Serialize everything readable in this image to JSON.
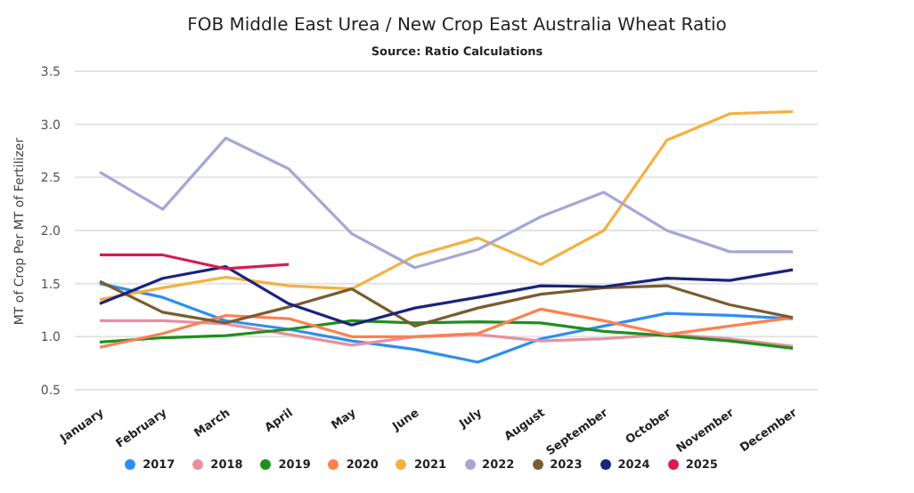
{
  "chart_data": {
    "type": "line",
    "title": "FOB Middle East Urea / New Crop East Australia Wheat Ratio",
    "subtitle": "Source: Ratio Calculations",
    "ylabel": "MT of Crop Per MT of Fertilizer",
    "categories": [
      "January",
      "February",
      "March",
      "April",
      "May",
      "June",
      "July",
      "August",
      "September",
      "October",
      "November",
      "December"
    ],
    "series": [
      {
        "name": "2017",
        "color": "#2e8ef0",
        "values": [
          1.5,
          1.37,
          1.15,
          1.07,
          0.96,
          0.88,
          0.76,
          0.98,
          1.1,
          1.22,
          1.2,
          1.17
        ]
      },
      {
        "name": "2018",
        "color": "#e8909f",
        "values": [
          1.15,
          1.15,
          1.12,
          1.02,
          0.92,
          1.0,
          1.02,
          0.96,
          0.98,
          1.02,
          0.98,
          0.91
        ]
      },
      {
        "name": "2019",
        "color": "#1f8f1f",
        "values": [
          0.95,
          0.99,
          1.01,
          1.07,
          1.15,
          1.13,
          1.14,
          1.13,
          1.05,
          1.01,
          0.96,
          0.89
        ]
      },
      {
        "name": "2020",
        "color": "#ff7f50",
        "values": [
          0.9,
          1.03,
          1.2,
          1.17,
          1.0,
          1.0,
          1.03,
          1.26,
          1.15,
          1.02,
          1.1,
          1.18
        ]
      },
      {
        "name": "2021",
        "color": "#f5b041",
        "values": [
          1.35,
          1.46,
          1.56,
          1.48,
          1.45,
          1.76,
          1.93,
          1.68,
          2.0,
          2.85,
          3.1,
          3.12
        ]
      },
      {
        "name": "2022",
        "color": "#a6a6d6",
        "values": [
          2.55,
          2.2,
          2.87,
          2.58,
          1.97,
          1.65,
          1.82,
          2.13,
          2.36,
          2.0,
          1.8,
          1.8
        ]
      },
      {
        "name": "2023",
        "color": "#7a5c2e",
        "values": [
          1.52,
          1.23,
          1.13,
          1.28,
          1.45,
          1.1,
          1.27,
          1.4,
          1.46,
          1.48,
          1.3,
          1.18
        ]
      },
      {
        "name": "2024",
        "color": "#1a237e",
        "values": [
          1.31,
          1.55,
          1.66,
          1.31,
          1.11,
          1.27,
          1.37,
          1.48,
          1.47,
          1.55,
          1.53,
          1.63
        ]
      },
      {
        "name": "2025",
        "color": "#d81b50",
        "values": [
          1.77,
          1.77,
          1.64,
          1.68,
          null,
          null,
          null,
          null,
          null,
          null,
          null,
          null
        ]
      }
    ],
    "ylim": [
      0.5,
      3.5
    ],
    "yticks": [
      {
        "value": 0.5,
        "label": "0.5"
      },
      {
        "value": 1,
        "label": "1.0"
      },
      {
        "value": 1.5,
        "label": "1.5"
      },
      {
        "value": 2,
        "label": "2.0"
      },
      {
        "value": 2.5,
        "label": "2.5"
      },
      {
        "value": 3,
        "label": "3.0"
      },
      {
        "value": 3.5,
        "label": "3.5"
      }
    ],
    "grid": "y",
    "legend": "bottom"
  }
}
